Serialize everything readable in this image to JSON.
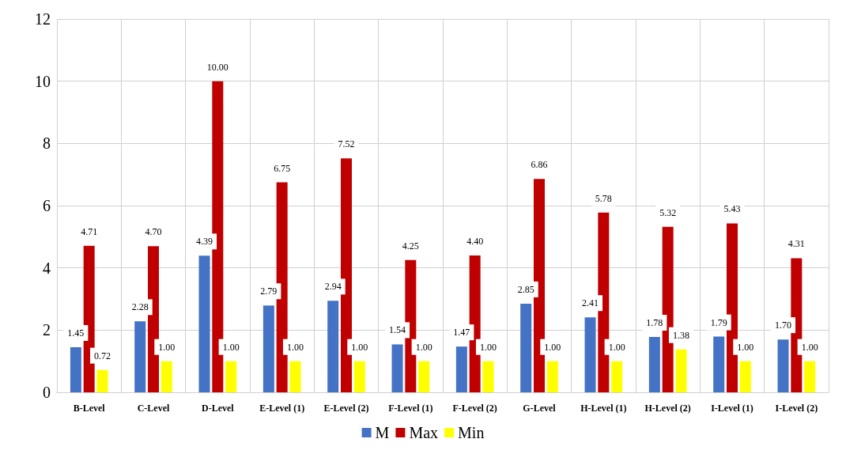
{
  "chart_data": {
    "type": "bar",
    "categories": [
      "B-Level",
      "C-Level",
      "D-Level",
      "E-Level (1)",
      "E-Level (2)",
      "F-Level (1)",
      "F-Level (2)",
      "G-Level",
      "H-Level (1)",
      "H-Level (2)",
      "I-Level (1)",
      "I-Level (2)"
    ],
    "series": [
      {
        "name": "M",
        "color": "#4472c4",
        "values": [
          1.45,
          2.28,
          4.39,
          2.79,
          2.94,
          1.54,
          1.47,
          2.85,
          2.41,
          1.78,
          1.79,
          1.7
        ],
        "value_labels": [
          "1.45",
          "2.28",
          "4.39",
          "2.79",
          "2.94",
          "1.54",
          "1.47",
          "2.85",
          "2.41",
          "1.78",
          "1.79",
          "1.70"
        ]
      },
      {
        "name": "Max",
        "color": "#c00000",
        "values": [
          4.71,
          4.7,
          10.0,
          6.75,
          7.52,
          4.25,
          4.4,
          6.86,
          5.78,
          5.32,
          5.43,
          4.31
        ],
        "value_labels": [
          "4.71",
          "4.70",
          "10.00",
          "6.75",
          "7.52",
          "4.25",
          "4.40",
          "6.86",
          "5.78",
          "5.32",
          "5.43",
          "4.31"
        ]
      },
      {
        "name": "Min",
        "color": "#ffff00",
        "values": [
          0.72,
          1.0,
          1.0,
          1.0,
          1.0,
          1.0,
          1.0,
          1.0,
          1.0,
          1.38,
          1.0,
          1.0
        ],
        "value_labels": [
          "0.72",
          "1.00",
          "1.00",
          "1.00",
          "1.00",
          "1.00",
          "1.00",
          "1.00",
          "1.00",
          "1.38",
          "1.00",
          "1.00"
        ]
      }
    ],
    "ylim": [
      0,
      12
    ],
    "yticks": [
      0,
      2,
      4,
      6,
      8,
      10,
      12
    ],
    "grid": true,
    "legend": "bottom"
  }
}
